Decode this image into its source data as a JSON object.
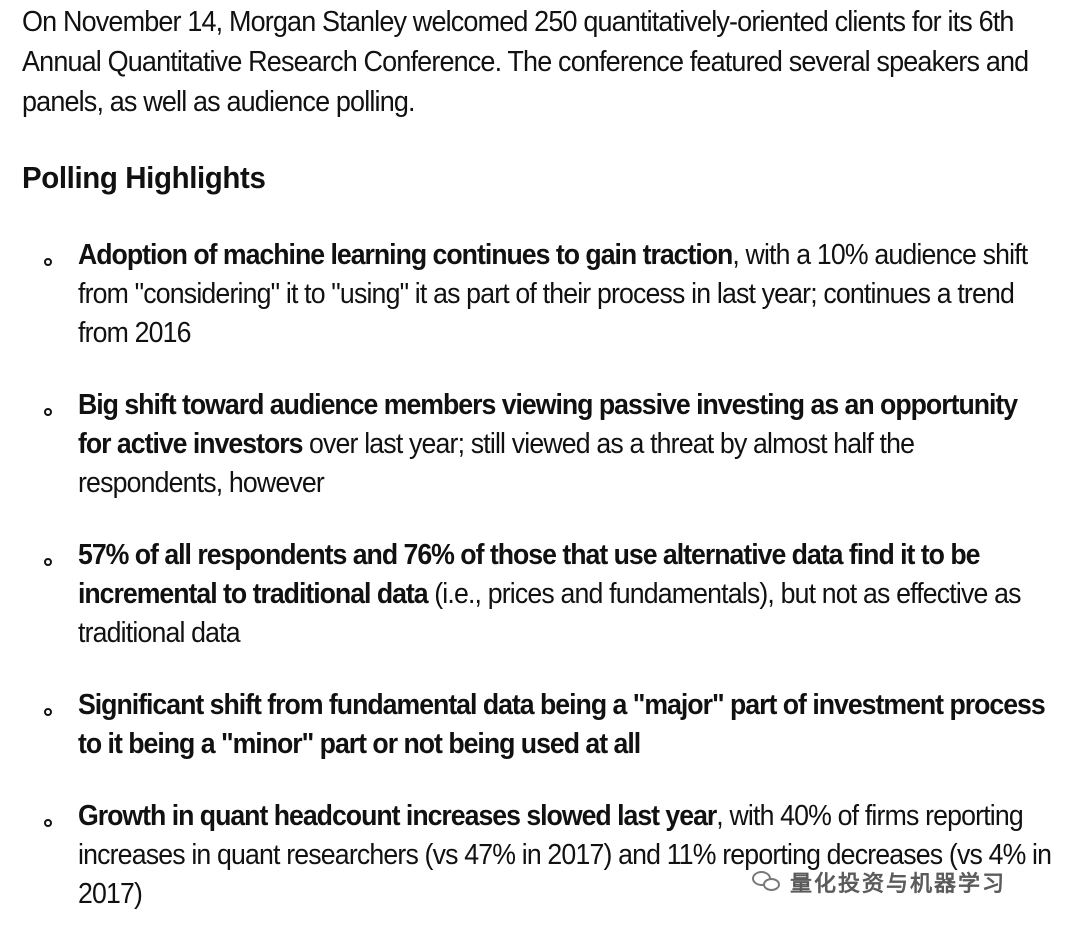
{
  "intro": "On November 14, Morgan Stanley welcomed 250 quantitatively-oriented clients for its 6th Annual Quantitative Research Conference. The conference featured several speakers and panels, as well as audience polling.",
  "heading": "Polling Highlights",
  "bullets": [
    {
      "bold": "Adoption of machine learning continues to gain traction",
      "rest": ", with a 10% audience shift from \"considering\" it to \"using\" it as part of their process in last year; continues a trend from 2016"
    },
    {
      "bold": "Big shift toward audience members viewing passive investing as an opportunity for active investors",
      "rest": " over last year; still viewed as a threat by almost half the respondents, however"
    },
    {
      "bold": "57% of all respondents and 76% of those that use alternative data find it to be incremental to traditional data",
      "rest": " (i.e., prices and fundamentals), but not as effective as traditional data"
    },
    {
      "bold": "Significant shift from fundamental data being a \"major\" part of investment process to it being a \"minor\" part or not being used at all",
      "rest": ""
    },
    {
      "bold": "Growth in quant headcount increases slowed last year",
      "rest": ", with 40% of firms reporting increases in quant researchers (vs 47% in 2017) and 11% reporting decreases (vs 4% in 2017)"
    }
  ],
  "watermark": {
    "icon": "wechat-icon",
    "text": "量化投资与机器学习"
  }
}
